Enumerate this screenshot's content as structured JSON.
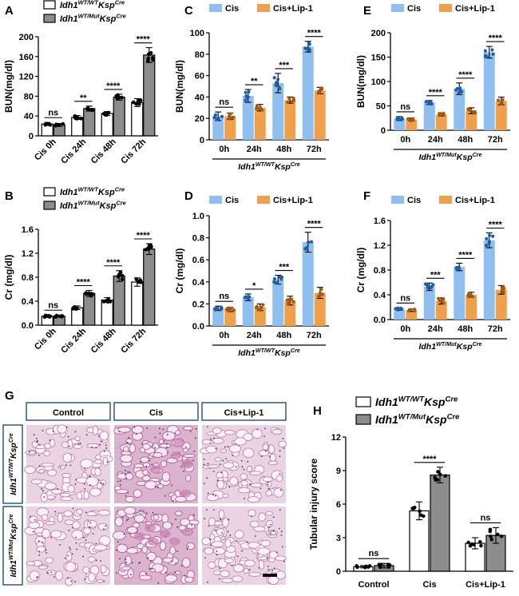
{
  "figure": {
    "panels": [
      "A",
      "B",
      "C",
      "D",
      "E",
      "F",
      "G",
      "H"
    ],
    "genotype_wt": "Idh1",
    "genotype_wt_sup": "WT/WT",
    "genotype_mut_sup": "WT/Mut",
    "cre": "Ksp",
    "cre_sup": "Cre",
    "colors": {
      "white_bar": "#ffffff",
      "grey_bar": "#8c8c8c",
      "cis_blue": "#8fbfee",
      "lip_orange": "#f0a04b",
      "dot_blue": "#1f5fa8",
      "dot_orange": "#a65a0c",
      "panel_border": "#1f4e79"
    }
  },
  "chart_data": [
    {
      "id": "A",
      "type": "bar",
      "ylabel": "BUN(mg/dl)",
      "ylim": [
        0,
        200
      ],
      "yticks": [
        0,
        40,
        80,
        120,
        160,
        200
      ],
      "categories": [
        "Cis 0h",
        "Cis 24h",
        "Cis 48h",
        "Cis 72h"
      ],
      "legend": [
        {
          "text": "Idh1",
          "sup": "WT/WT",
          "mid": "Ksp",
          "sup2": "Cre"
        },
        {
          "text": "Idh1",
          "sup": "WT/Mut",
          "mid": "Ksp",
          "sup2": "Cre"
        }
      ],
      "series": [
        {
          "color": "#ffffff",
          "values": [
            24,
            37,
            45,
            67
          ],
          "err": [
            3,
            4,
            4,
            8
          ]
        },
        {
          "color": "#8c8c8c",
          "values": [
            22,
            55,
            78,
            163
          ],
          "err": [
            3,
            5,
            6,
            15
          ]
        }
      ],
      "sig": [
        "ns",
        "**",
        "****",
        "****"
      ]
    },
    {
      "id": "B",
      "type": "bar",
      "ylabel": "Cr (mg/dl)",
      "ylim": [
        0,
        1.6
      ],
      "yticks": [
        "0.0",
        "0.4",
        "0.8",
        "1.2",
        "1.6"
      ],
      "categories": [
        "Cis 0h",
        "Cis 24h",
        "Cis 48h",
        "Cis 72h"
      ],
      "legend": [
        {
          "text": "Idh1",
          "sup": "WT/WT",
          "mid": "Ksp",
          "sup2": "Cre"
        },
        {
          "text": "Idh1",
          "sup": "WT/Mut",
          "mid": "Ksp",
          "sup2": "Cre"
        }
      ],
      "series": [
        {
          "color": "#ffffff",
          "values": [
            0.15,
            0.29,
            0.42,
            0.72
          ],
          "err": [
            0.02,
            0.03,
            0.04,
            0.07
          ]
        },
        {
          "color": "#8c8c8c",
          "values": [
            0.15,
            0.53,
            0.82,
            1.27
          ],
          "err": [
            0.02,
            0.05,
            0.09,
            0.09
          ]
        }
      ],
      "sig": [
        "ns",
        "****",
        "****",
        "****"
      ]
    },
    {
      "id": "C",
      "type": "bar",
      "ylabel": "BUN(mg/dl)",
      "ylim": [
        0,
        100
      ],
      "yticks": [
        0,
        20,
        40,
        60,
        80,
        100
      ],
      "categories": [
        "0h",
        "24h",
        "48h",
        "72h"
      ],
      "legend": [
        {
          "text": "Cis"
        },
        {
          "text": "Cis+Lip-1"
        }
      ],
      "group": {
        "text": "Idh1",
        "sup": "WT/WT",
        "mid": "Ksp",
        "sup2": "Cre"
      },
      "series": [
        {
          "name": "Cis",
          "color": "#8fbfee",
          "values": [
            22,
            41,
            53,
            87
          ],
          "err": [
            4,
            6,
            9,
            5
          ]
        },
        {
          "name": "Cis+Lip-1",
          "color": "#f0a04b",
          "values": [
            22,
            30,
            37,
            46
          ],
          "err": [
            3,
            3,
            3,
            3
          ]
        }
      ],
      "sig": [
        "ns",
        "**",
        "***",
        "****"
      ]
    },
    {
      "id": "D",
      "type": "bar",
      "ylabel": "Cr (mg/dl)",
      "ylim": [
        0,
        1.0
      ],
      "yticks": [
        "0.0",
        "0.2",
        "0.4",
        "0.6",
        "0.8",
        "1.0"
      ],
      "categories": [
        "0h",
        "24h",
        "48h",
        "72h"
      ],
      "legend": [
        {
          "text": "Cis"
        },
        {
          "text": "Cis+Lip-1"
        }
      ],
      "group": {
        "text": "Idh1",
        "sup": "WT/WT",
        "mid": "Ksp",
        "sup2": "Cre"
      },
      "series": [
        {
          "name": "Cis",
          "color": "#8fbfee",
          "values": [
            0.16,
            0.26,
            0.42,
            0.76
          ],
          "err": [
            0.02,
            0.03,
            0.04,
            0.09
          ]
        },
        {
          "name": "Cis+Lip-1",
          "color": "#f0a04b",
          "values": [
            0.15,
            0.17,
            0.23,
            0.3
          ],
          "err": [
            0.02,
            0.03,
            0.04,
            0.05
          ]
        }
      ],
      "sig": [
        "ns",
        "*",
        "***",
        "****"
      ]
    },
    {
      "id": "E",
      "type": "bar",
      "ylabel": "BUN(mg/dl)",
      "ylim": [
        0,
        200
      ],
      "yticks": [
        0,
        50,
        100,
        150,
        200
      ],
      "categories": [
        "0h",
        "24h",
        "48h",
        "72h"
      ],
      "legend": [
        {
          "text": "Cis"
        },
        {
          "text": "Cis+Lip-1"
        }
      ],
      "group": {
        "text": "Idh1",
        "sup": "WT/Mut",
        "mid": "Ksp",
        "sup2": "Cre"
      },
      "series": [
        {
          "name": "Cis",
          "color": "#8fbfee",
          "values": [
            24,
            57,
            85,
            160
          ],
          "err": [
            4,
            4,
            12,
            12
          ]
        },
        {
          "name": "Cis+Lip-1",
          "color": "#f0a04b",
          "values": [
            22,
            32,
            40,
            60
          ],
          "err": [
            3,
            3,
            6,
            8
          ]
        }
      ],
      "sig": [
        "ns",
        "****",
        "****",
        "****"
      ]
    },
    {
      "id": "F",
      "type": "bar",
      "ylabel": "Cr (mg/dl)",
      "ylim": [
        0,
        1.6
      ],
      "yticks": [
        "0.0",
        "0.4",
        "0.8",
        "1.2",
        "1.6"
      ],
      "categories": [
        "0h",
        "24h",
        "48h",
        "72h"
      ],
      "legend": [
        {
          "text": "Cis"
        },
        {
          "text": "Cis+Lip-1"
        }
      ],
      "group": {
        "text": "Idh1",
        "sup": "WT/Mut",
        "mid": "Ksp",
        "sup2": "Cre"
      },
      "series": [
        {
          "name": "Cis",
          "color": "#8fbfee",
          "values": [
            0.17,
            0.53,
            0.85,
            1.28
          ],
          "err": [
            0.02,
            0.06,
            0.06,
            0.12
          ]
        },
        {
          "name": "Cis+Lip-1",
          "color": "#f0a04b",
          "values": [
            0.15,
            0.3,
            0.4,
            0.48
          ],
          "err": [
            0.02,
            0.05,
            0.04,
            0.07
          ]
        }
      ],
      "sig": [
        "ns",
        "***",
        "****",
        "****"
      ]
    },
    {
      "id": "H",
      "type": "bar",
      "ylabel": "Tubular injury score",
      "ylim": [
        0,
        12
      ],
      "yticks": [
        0,
        3,
        6,
        9,
        12
      ],
      "categories": [
        "Control",
        "Cis",
        "Cis+Lip-1"
      ],
      "legend": [
        {
          "text": "Idh1",
          "sup": "WT/WT",
          "mid": "Ksp",
          "sup2": "Cre"
        },
        {
          "text": "Idh1",
          "sup": "WT/Mut",
          "mid": "Ksp",
          "sup2": "Cre"
        }
      ],
      "series": [
        {
          "color": "#ffffff",
          "values": [
            0.4,
            5.4,
            2.5
          ],
          "err": [
            0.1,
            0.8,
            0.5
          ]
        },
        {
          "color": "#8c8c8c",
          "values": [
            0.5,
            8.6,
            3.2
          ],
          "err": [
            0.2,
            0.7,
            0.7
          ]
        }
      ],
      "sig": [
        "ns",
        "****",
        "ns"
      ]
    }
  ],
  "histology": {
    "columns": [
      "Control",
      "Cis",
      "Cis+Lip-1"
    ],
    "rows": [
      {
        "text": "Idh1",
        "sup": "WT/WT",
        "mid": "Ksp",
        "sup2": "Cre"
      },
      {
        "text": "Idh1",
        "sup": "WT/Mut",
        "mid": "Ksp",
        "sup2": "Cre"
      }
    ]
  }
}
